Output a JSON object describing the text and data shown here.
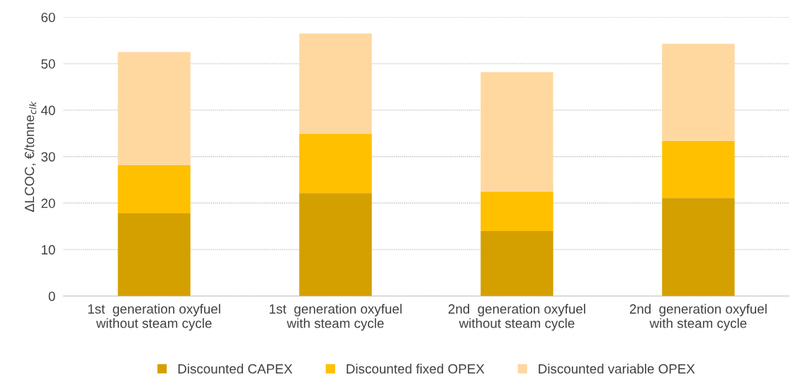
{
  "chart_data": {
    "type": "bar",
    "stacked": true,
    "ylabel": "ΔLCOC, €/tonne$_{clk}$",
    "categories": [
      "1st  generation oxyfuel\nwithout steam cycle",
      "1st  generation oxyfuel\nwith steam cycle",
      "2nd  generation oxyfuel\nwithout steam cycle",
      "2nd  generation oxyfuel\nwith steam cycle"
    ],
    "series": [
      {
        "name": "Discounted CAPEX",
        "color": "#d4a000",
        "values": [
          17.8,
          22.2,
          14.0,
          21.1
        ]
      },
      {
        "name": "Discounted fixed OPEX",
        "color": "#ffc000",
        "values": [
          10.4,
          12.7,
          8.5,
          12.3
        ]
      },
      {
        "name": "Discounted variable OPEX",
        "color": "#ffd8a0",
        "values": [
          24.3,
          21.6,
          25.7,
          20.9
        ]
      }
    ],
    "ylim": [
      0,
      60
    ],
    "yticks": [
      0,
      10,
      20,
      30,
      40,
      50,
      60
    ],
    "grid": "y",
    "legend": "bottom"
  }
}
